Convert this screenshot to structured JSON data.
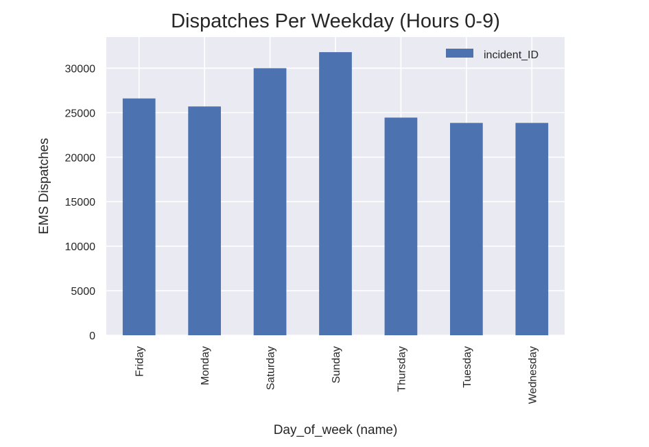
{
  "chart_data": {
    "type": "bar",
    "title": "Dispatches Per Weekday (Hours 0-9)",
    "xlabel": "Day_of_week (name)",
    "ylabel": "EMS Dispatches",
    "categories": [
      "Friday",
      "Monday",
      "Saturday",
      "Sunday",
      "Thursday",
      "Tuesday",
      "Wednesday"
    ],
    "series": [
      {
        "name": "incident_ID",
        "color": "#4c72b0",
        "values": [
          26600,
          25700,
          30000,
          31800,
          24450,
          23850,
          23850
        ]
      }
    ],
    "ylim": [
      0,
      33500
    ],
    "yticks": [
      0,
      5000,
      10000,
      15000,
      20000,
      25000,
      30000
    ],
    "grid": true,
    "legend_position": "top-right",
    "background_color": "#eaeaf2"
  }
}
